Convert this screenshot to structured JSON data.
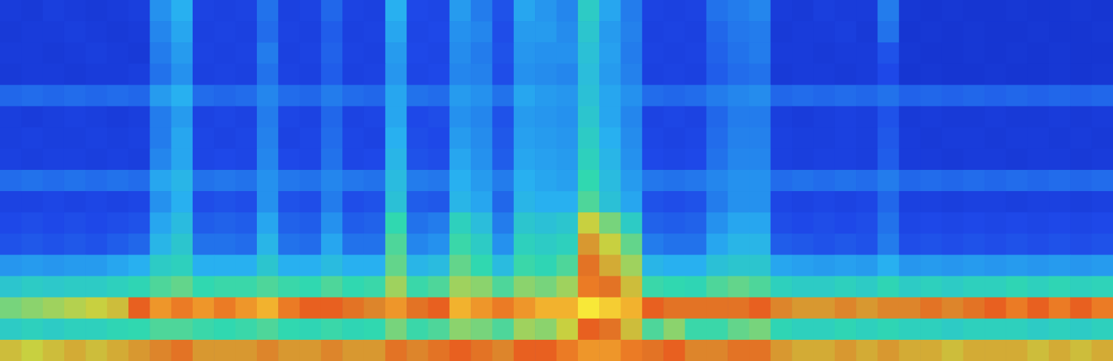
{
  "chart_data": {
    "type": "heatmap",
    "tick_labels": false,
    "zlim": [
      0,
      100
    ],
    "cells": [
      [
        15,
        14,
        16,
        15,
        14,
        15,
        16,
        34,
        40,
        18,
        17,
        18,
        28,
        17,
        18,
        26,
        18,
        17,
        40,
        20,
        19,
        36,
        30,
        22,
        38,
        35,
        32,
        50,
        38,
        30,
        18,
        17,
        18,
        28,
        30,
        32,
        15,
        14,
        16,
        15,
        15,
        30,
        13,
        12,
        13,
        12,
        12,
        13,
        12,
        12,
        13,
        12
      ],
      [
        14,
        15,
        15,
        16,
        15,
        14,
        15,
        32,
        38,
        17,
        18,
        17,
        27,
        18,
        17,
        24,
        17,
        18,
        38,
        19,
        20,
        34,
        32,
        21,
        36,
        36,
        33,
        48,
        36,
        31,
        17,
        18,
        17,
        26,
        29,
        30,
        14,
        15,
        15,
        16,
        14,
        28,
        12,
        13,
        12,
        13,
        12,
        12,
        13,
        12,
        12,
        13
      ],
      [
        15,
        15,
        14,
        15,
        16,
        15,
        14,
        30,
        36,
        18,
        17,
        18,
        30,
        17,
        18,
        25,
        18,
        17,
        36,
        20,
        19,
        33,
        30,
        22,
        35,
        34,
        34,
        46,
        37,
        30,
        18,
        17,
        18,
        25,
        28,
        30,
        15,
        15,
        14,
        15,
        15,
        22,
        13,
        12,
        12,
        13,
        12,
        13,
        12,
        13,
        12,
        12
      ],
      [
        14,
        15,
        15,
        14,
        15,
        15,
        16,
        28,
        34,
        17,
        18,
        17,
        28,
        18,
        17,
        24,
        17,
        18,
        35,
        19,
        20,
        32,
        31,
        21,
        34,
        33,
        32,
        45,
        36,
        31,
        17,
        18,
        17,
        24,
        27,
        28,
        14,
        15,
        15,
        14,
        15,
        20,
        12,
        13,
        12,
        12,
        13,
        12,
        12,
        13,
        12,
        13
      ],
      [
        26,
        27,
        26,
        27,
        26,
        27,
        26,
        36,
        40,
        27,
        26,
        27,
        32,
        27,
        26,
        30,
        27,
        26,
        38,
        28,
        27,
        36,
        34,
        28,
        38,
        36,
        35,
        46,
        38,
        34,
        27,
        26,
        27,
        30,
        32,
        33,
        26,
        27,
        26,
        27,
        26,
        28,
        25,
        26,
        25,
        26,
        25,
        26,
        25,
        26,
        25,
        26
      ],
      [
        16,
        15,
        16,
        17,
        16,
        15,
        16,
        30,
        36,
        18,
        19,
        18,
        30,
        19,
        18,
        26,
        18,
        19,
        38,
        20,
        21,
        34,
        32,
        22,
        36,
        35,
        34,
        48,
        38,
        32,
        18,
        19,
        18,
        26,
        30,
        30,
        16,
        15,
        16,
        17,
        16,
        22,
        14,
        15,
        14,
        14,
        15,
        14,
        14,
        15,
        14,
        15
      ],
      [
        16,
        17,
        16,
        16,
        17,
        16,
        17,
        30,
        38,
        19,
        18,
        19,
        31,
        18,
        19,
        27,
        19,
        18,
        40,
        21,
        20,
        36,
        33,
        23,
        37,
        36,
        35,
        50,
        40,
        33,
        19,
        18,
        19,
        27,
        31,
        31,
        17,
        16,
        16,
        17,
        16,
        23,
        15,
        14,
        15,
        15,
        14,
        15,
        15,
        14,
        15,
        14
      ],
      [
        17,
        16,
        17,
        17,
        16,
        17,
        16,
        32,
        38,
        19,
        20,
        19,
        32,
        20,
        19,
        28,
        19,
        20,
        42,
        22,
        21,
        38,
        34,
        24,
        38,
        37,
        36,
        52,
        42,
        34,
        20,
        19,
        20,
        28,
        32,
        32,
        17,
        16,
        17,
        17,
        16,
        24,
        15,
        15,
        14,
        15,
        15,
        14,
        15,
        15,
        14,
        15
      ],
      [
        27,
        28,
        27,
        28,
        27,
        28,
        27,
        38,
        42,
        28,
        29,
        28,
        34,
        29,
        28,
        32,
        29,
        28,
        44,
        30,
        29,
        40,
        36,
        30,
        40,
        38,
        37,
        55,
        44,
        36,
        29,
        28,
        29,
        32,
        34,
        34,
        27,
        28,
        27,
        28,
        27,
        30,
        26,
        27,
        26,
        27,
        26,
        27,
        26,
        27,
        26,
        27
      ],
      [
        18,
        18,
        19,
        18,
        19,
        18,
        19,
        34,
        40,
        21,
        22,
        21,
        34,
        22,
        21,
        30,
        21,
        22,
        46,
        24,
        23,
        42,
        38,
        26,
        42,
        40,
        40,
        58,
        46,
        38,
        22,
        21,
        22,
        30,
        34,
        34,
        19,
        18,
        19,
        18,
        19,
        26,
        17,
        17,
        16,
        17,
        17,
        16,
        17,
        17,
        16,
        17
      ],
      [
        20,
        21,
        20,
        21,
        20,
        21,
        22,
        38,
        44,
        24,
        25,
        24,
        38,
        25,
        24,
        34,
        24,
        25,
        55,
        28,
        30,
        52,
        45,
        30,
        48,
        46,
        48,
        70,
        62,
        50,
        25,
        24,
        25,
        34,
        38,
        38,
        21,
        20,
        21,
        20,
        21,
        28,
        19,
        20,
        19,
        20,
        19,
        20,
        19,
        20,
        19,
        20
      ],
      [
        22,
        23,
        22,
        23,
        22,
        24,
        26,
        42,
        48,
        28,
        28,
        27,
        42,
        28,
        27,
        38,
        28,
        28,
        58,
        32,
        34,
        56,
        50,
        34,
        52,
        50,
        52,
        76,
        70,
        60,
        30,
        28,
        28,
        38,
        42,
        42,
        24,
        23,
        22,
        23,
        22,
        30,
        21,
        22,
        21,
        22,
        21,
        22,
        21,
        22,
        21,
        22
      ],
      [
        35,
        36,
        35,
        36,
        36,
        38,
        40,
        50,
        52,
        40,
        40,
        40,
        48,
        40,
        40,
        44,
        40,
        40,
        60,
        42,
        44,
        60,
        55,
        44,
        56,
        54,
        58,
        80,
        74,
        66,
        42,
        40,
        40,
        46,
        48,
        48,
        38,
        37,
        36,
        37,
        36,
        40,
        35,
        36,
        35,
        36,
        35,
        36,
        35,
        36,
        35,
        36
      ],
      [
        48,
        50,
        49,
        50,
        50,
        52,
        54,
        58,
        60,
        55,
        56,
        56,
        58,
        56,
        55,
        58,
        55,
        56,
        66,
        56,
        58,
        66,
        64,
        58,
        64,
        62,
        66,
        84,
        80,
        72,
        56,
        55,
        54,
        58,
        60,
        58,
        52,
        50,
        50,
        52,
        50,
        54,
        50,
        52,
        50,
        52,
        52,
        54,
        52,
        54,
        52,
        53
      ],
      [
        62,
        64,
        66,
        68,
        70,
        72,
        82,
        86,
        84,
        86,
        84,
        86,
        88,
        84,
        82,
        82,
        80,
        78,
        86,
        80,
        82,
        88,
        86,
        84,
        86,
        88,
        88,
        92,
        90,
        88,
        82,
        80,
        80,
        80,
        80,
        82,
        78,
        76,
        76,
        78,
        76,
        78,
        78,
        80,
        78,
        80,
        82,
        84,
        82,
        84,
        82,
        84
      ],
      [
        50,
        52,
        50,
        52,
        52,
        54,
        55,
        58,
        58,
        56,
        55,
        56,
        58,
        55,
        54,
        56,
        54,
        55,
        62,
        56,
        58,
        64,
        62,
        58,
        66,
        64,
        70,
        82,
        80,
        72,
        58,
        64,
        56,
        56,
        60,
        62,
        54,
        52,
        52,
        54,
        52,
        54,
        52,
        52,
        50,
        52,
        52,
        52,
        50,
        52,
        50,
        52
      ],
      [
        72,
        70,
        72,
        74,
        72,
        74,
        76,
        78,
        80,
        76,
        76,
        76,
        78,
        76,
        76,
        78,
        76,
        76,
        80,
        78,
        80,
        82,
        80,
        78,
        82,
        82,
        84,
        86,
        86,
        84,
        80,
        82,
        78,
        78,
        80,
        80,
        76,
        74,
        74,
        76,
        74,
        76,
        74,
        74,
        72,
        74,
        74,
        74,
        72,
        74,
        72,
        74
      ]
    ]
  }
}
